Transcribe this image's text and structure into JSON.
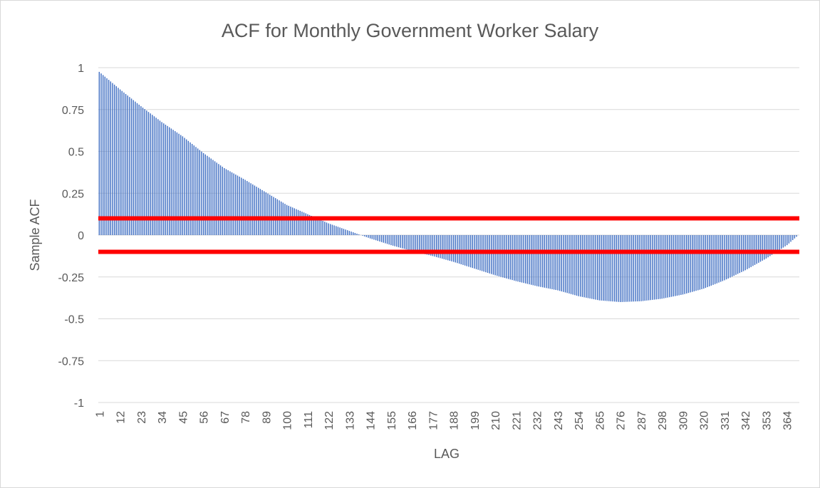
{
  "chart_data": {
    "type": "bar",
    "title": "ACF for Monthly Government Worker Salary",
    "xlabel": "LAG",
    "ylabel": "Sample ACF",
    "ylim": [
      -1,
      1
    ],
    "yticks": [
      "1",
      "0.75",
      "0.5",
      "0.25",
      "0",
      "-0.25",
      "-0.5",
      "-0.75",
      "-1"
    ],
    "ytick_values": [
      1,
      0.75,
      0.5,
      0.25,
      0,
      -0.25,
      -0.5,
      -0.75,
      -1
    ],
    "x_range": [
      1,
      370
    ],
    "xtick_labels": [
      "1",
      "12",
      "23",
      "34",
      "45",
      "56",
      "67",
      "78",
      "89",
      "100",
      "111",
      "122",
      "133",
      "144",
      "155",
      "166",
      "177",
      "188",
      "199",
      "210",
      "221",
      "232",
      "243",
      "254",
      "265",
      "276",
      "287",
      "298",
      "309",
      "320",
      "331",
      "342",
      "353",
      "364"
    ],
    "series": [
      {
        "color": "#4472c4",
        "lag_step": 1,
        "key_points": [
          {
            "lag": 1,
            "acf": 0.975
          },
          {
            "lag": 12,
            "acf": 0.87
          },
          {
            "lag": 23,
            "acf": 0.77
          },
          {
            "lag": 34,
            "acf": 0.675
          },
          {
            "lag": 45,
            "acf": 0.59
          },
          {
            "lag": 56,
            "acf": 0.49
          },
          {
            "lag": 67,
            "acf": 0.4
          },
          {
            "lag": 78,
            "acf": 0.33
          },
          {
            "lag": 89,
            "acf": 0.255
          },
          {
            "lag": 100,
            "acf": 0.18
          },
          {
            "lag": 111,
            "acf": 0.125
          },
          {
            "lag": 122,
            "acf": 0.07
          },
          {
            "lag": 133,
            "acf": 0.025
          },
          {
            "lag": 144,
            "acf": -0.02
          },
          {
            "lag": 155,
            "acf": -0.06
          },
          {
            "lag": 166,
            "acf": -0.095
          },
          {
            "lag": 177,
            "acf": -0.125
          },
          {
            "lag": 188,
            "acf": -0.16
          },
          {
            "lag": 199,
            "acf": -0.2
          },
          {
            "lag": 210,
            "acf": -0.24
          },
          {
            "lag": 221,
            "acf": -0.275
          },
          {
            "lag": 232,
            "acf": -0.305
          },
          {
            "lag": 243,
            "acf": -0.33
          },
          {
            "lag": 254,
            "acf": -0.365
          },
          {
            "lag": 265,
            "acf": -0.39
          },
          {
            "lag": 276,
            "acf": -0.4
          },
          {
            "lag": 287,
            "acf": -0.395
          },
          {
            "lag": 298,
            "acf": -0.38
          },
          {
            "lag": 309,
            "acf": -0.355
          },
          {
            "lag": 320,
            "acf": -0.32
          },
          {
            "lag": 331,
            "acf": -0.27
          },
          {
            "lag": 342,
            "acf": -0.21
          },
          {
            "lag": 353,
            "acf": -0.14
          },
          {
            "lag": 364,
            "acf": -0.06
          },
          {
            "lag": 370,
            "acf": 0.0
          }
        ]
      }
    ],
    "reference_lines": [
      {
        "value": 0.1,
        "color": "#ff0000"
      },
      {
        "value": -0.1,
        "color": "#ff0000"
      }
    ],
    "grid": true,
    "legend": "none"
  }
}
